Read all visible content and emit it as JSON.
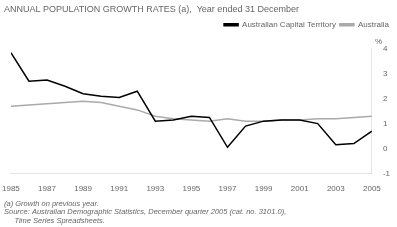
{
  "chart_data": {
    "type": "line",
    "title": "ANNUAL POPULATION GROWTH RATES (a),  Year ended 31 December",
    "y_label": "%",
    "annotations": [
      "(a) Growth on previous year.",
      "Source: Australian Demographic Statistics, December quarter 2005 (cat. no. 3101.0),",
      "     Time Series Spreadsheets."
    ],
    "x": [
      1985,
      1986,
      1987,
      1988,
      1989,
      1990,
      1991,
      1992,
      1993,
      1994,
      1995,
      1996,
      1997,
      1998,
      1999,
      2000,
      2001,
      2002,
      2003,
      2004,
      2005
    ],
    "series": [
      {
        "name": "Australian Capital Territory",
        "color": "#000000",
        "values": [
          3.85,
          2.7,
          2.75,
          2.5,
          2.2,
          2.1,
          2.05,
          2.3,
          1.1,
          1.15,
          1.3,
          1.25,
          0.05,
          0.9,
          1.1,
          1.15,
          1.15,
          1.0,
          0.15,
          0.2,
          0.7
        ]
      },
      {
        "name": "Australia",
        "color": "#aaaaaa",
        "values": [
          1.7,
          1.75,
          1.8,
          1.85,
          1.9,
          1.85,
          1.7,
          1.55,
          1.3,
          1.2,
          1.15,
          1.1,
          1.2,
          1.1,
          1.1,
          1.15,
          1.15,
          1.2,
          1.2,
          1.25,
          1.3
        ]
      }
    ],
    "xlim": [
      1985,
      2005
    ],
    "xticks": [
      1985,
      1987,
      1989,
      1991,
      1993,
      1995,
      1997,
      1999,
      2001,
      2003,
      2005
    ],
    "ylim": [
      -1,
      4
    ],
    "yticks": [
      -1,
      0,
      1,
      2,
      3,
      4
    ],
    "grid": false,
    "legend": "upper right"
  }
}
